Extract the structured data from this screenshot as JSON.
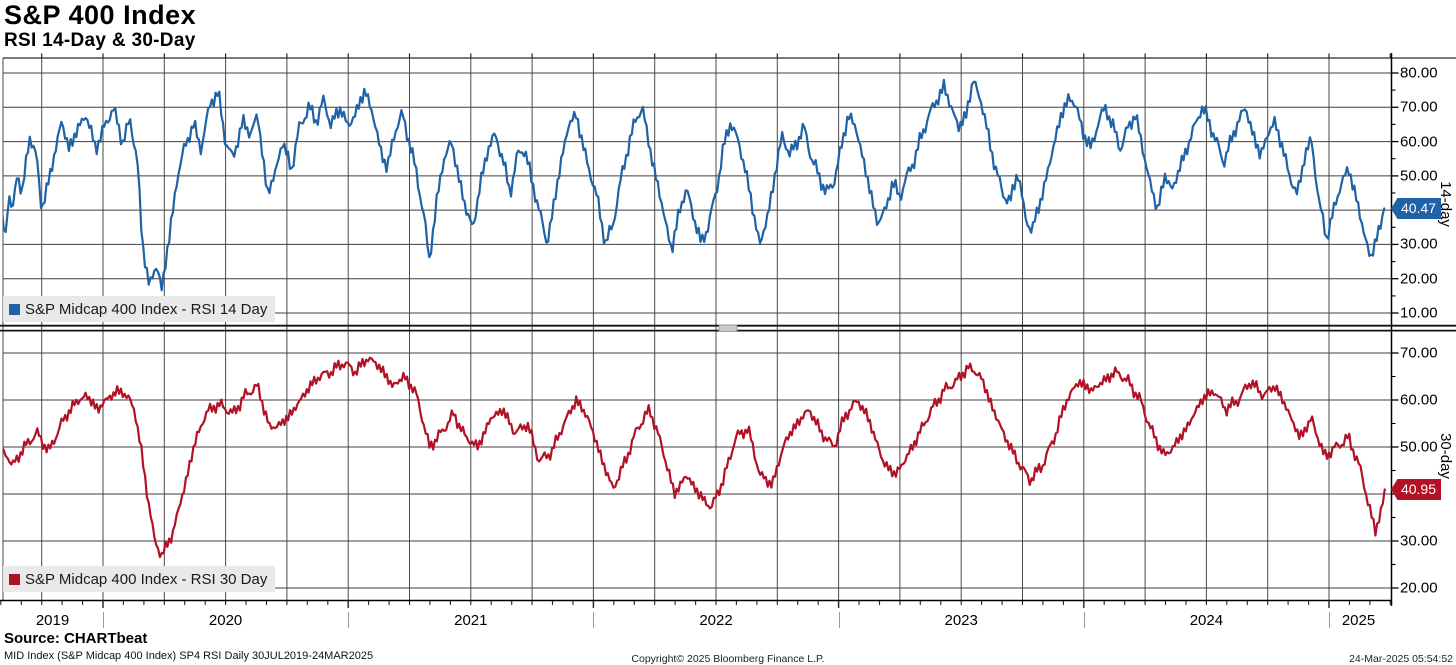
{
  "header": {
    "title": "S&P 400 Index",
    "subtitle": "RSI 14-Day & 30-Day"
  },
  "colors": {
    "rsi14_blue": "#1f62a5",
    "rsi30_red": "#b11226",
    "grid": "#4a4a4a",
    "axis": "#000000",
    "legend_bg": "#e9e9e9",
    "year_separator": "#9a9a9a",
    "badge_text": "#ffffff"
  },
  "xaxis": {
    "year_labels": [
      "2019",
      "2020",
      "2021",
      "2022",
      "2023",
      "2024",
      "2025"
    ],
    "range_label": "30JUL2019-24MAR2025"
  },
  "footer": {
    "source": "Source: CHARTbeat",
    "descriptor": "MID Index (S&P Midcap 400 Index) SP4 RSI  Daily 30JUL2019-24MAR2025",
    "copyright": "Copyright© 2025 Bloomberg Finance L.P.",
    "datetime": "24-Mar-2025 05:54:52"
  },
  "chart_data": [
    {
      "type": "line",
      "name": "S&P Midcap 400 Index - RSI 14 Day",
      "axis_title": "14-day",
      "panel": "top",
      "color": "#1f62a5",
      "legend_marker": "square-icon",
      "ylim": [
        6.5,
        84.4
      ],
      "ygrid": [
        10,
        20,
        30,
        40,
        50,
        60,
        70,
        80
      ],
      "ytick_labels": [
        "80.00",
        "70.00",
        "60.00",
        "50.00",
        "30.00",
        "20.00",
        "10.00"
      ],
      "last_value": 40.47,
      "last_label": "40.47",
      "x_unit": "decimal_year",
      "points": [
        [
          2019.588,
          40
        ],
        [
          2019.6,
          31
        ],
        [
          2019.615,
          45
        ],
        [
          2019.63,
          38
        ],
        [
          2019.65,
          52
        ],
        [
          2019.67,
          44
        ],
        [
          2019.7,
          62
        ],
        [
          2019.73,
          55
        ],
        [
          2019.75,
          40
        ],
        [
          2019.79,
          52
        ],
        [
          2019.83,
          66
        ],
        [
          2019.86,
          58
        ],
        [
          2019.9,
          64
        ],
        [
          2019.93,
          68
        ],
        [
          2019.97,
          58
        ],
        [
          2020.0,
          63
        ],
        [
          2020.04,
          70
        ],
        [
          2020.08,
          60
        ],
        [
          2020.11,
          66
        ],
        [
          2020.14,
          55
        ],
        [
          2020.16,
          30
        ],
        [
          2020.19,
          18
        ],
        [
          2020.22,
          24
        ],
        [
          2020.24,
          17
        ],
        [
          2020.27,
          32
        ],
        [
          2020.3,
          48
        ],
        [
          2020.33,
          58
        ],
        [
          2020.37,
          65
        ],
        [
          2020.4,
          58
        ],
        [
          2020.44,
          72
        ],
        [
          2020.47,
          74
        ],
        [
          2020.5,
          60
        ],
        [
          2020.53,
          55
        ],
        [
          2020.57,
          66
        ],
        [
          2020.6,
          62
        ],
        [
          2020.63,
          68
        ],
        [
          2020.67,
          45
        ],
        [
          2020.7,
          50
        ],
        [
          2020.73,
          60
        ],
        [
          2020.77,
          52
        ],
        [
          2020.8,
          64
        ],
        [
          2020.84,
          70
        ],
        [
          2020.87,
          66
        ],
        [
          2020.9,
          72
        ],
        [
          2020.93,
          65
        ],
        [
          2020.97,
          70
        ],
        [
          2021.0,
          64
        ],
        [
          2021.04,
          70
        ],
        [
          2021.07,
          75
        ],
        [
          2021.1,
          68
        ],
        [
          2021.13,
          58
        ],
        [
          2021.16,
          52
        ],
        [
          2021.19,
          63
        ],
        [
          2021.22,
          68
        ],
        [
          2021.25,
          60
        ],
        [
          2021.28,
          50
        ],
        [
          2021.31,
          38
        ],
        [
          2021.33,
          25
        ],
        [
          2021.36,
          42
        ],
        [
          2021.39,
          55
        ],
        [
          2021.42,
          60
        ],
        [
          2021.45,
          50
        ],
        [
          2021.48,
          40
        ],
        [
          2021.51,
          35
        ],
        [
          2021.54,
          48
        ],
        [
          2021.57,
          58
        ],
        [
          2021.6,
          62
        ],
        [
          2021.63,
          55
        ],
        [
          2021.66,
          45
        ],
        [
          2021.69,
          56
        ],
        [
          2021.72,
          58
        ],
        [
          2021.75,
          48
        ],
        [
          2021.78,
          40
        ],
        [
          2021.81,
          30
        ],
        [
          2021.84,
          42
        ],
        [
          2021.87,
          55
        ],
        [
          2021.9,
          65
        ],
        [
          2021.93,
          68
        ],
        [
          2021.96,
          58
        ],
        [
          2021.99,
          50
        ],
        [
          2022.02,
          42
        ],
        [
          2022.05,
          30
        ],
        [
          2022.08,
          36
        ],
        [
          2022.11,
          48
        ],
        [
          2022.14,
          58
        ],
        [
          2022.17,
          66
        ],
        [
          2022.2,
          70
        ],
        [
          2022.23,
          58
        ],
        [
          2022.26,
          48
        ],
        [
          2022.29,
          38
        ],
        [
          2022.32,
          28
        ],
        [
          2022.35,
          40
        ],
        [
          2022.38,
          46
        ],
        [
          2022.41,
          38
        ],
        [
          2022.44,
          30
        ],
        [
          2022.47,
          36
        ],
        [
          2022.5,
          45
        ],
        [
          2022.53,
          58
        ],
        [
          2022.56,
          66
        ],
        [
          2022.59,
          60
        ],
        [
          2022.62,
          52
        ],
        [
          2022.65,
          40
        ],
        [
          2022.68,
          30
        ],
        [
          2022.71,
          38
        ],
        [
          2022.74,
          50
        ],
        [
          2022.77,
          62
        ],
        [
          2022.8,
          56
        ],
        [
          2022.83,
          60
        ],
        [
          2022.86,
          64
        ],
        [
          2022.89,
          55
        ],
        [
          2022.92,
          50
        ],
        [
          2022.95,
          45
        ],
        [
          2022.98,
          48
        ],
        [
          2023.01,
          58
        ],
        [
          2023.04,
          68
        ],
        [
          2023.07,
          64
        ],
        [
          2023.1,
          55
        ],
        [
          2023.13,
          45
        ],
        [
          2023.16,
          36
        ],
        [
          2023.19,
          40
        ],
        [
          2023.22,
          48
        ],
        [
          2023.25,
          44
        ],
        [
          2023.28,
          50
        ],
        [
          2023.31,
          55
        ],
        [
          2023.34,
          62
        ],
        [
          2023.37,
          68
        ],
        [
          2023.4,
          72
        ],
        [
          2023.43,
          76
        ],
        [
          2023.46,
          70
        ],
        [
          2023.49,
          64
        ],
        [
          2023.52,
          68
        ],
        [
          2023.55,
          78
        ],
        [
          2023.58,
          72
        ],
        [
          2023.61,
          62
        ],
        [
          2023.64,
          52
        ],
        [
          2023.67,
          45
        ],
        [
          2023.7,
          42
        ],
        [
          2023.73,
          52
        ],
        [
          2023.76,
          38
        ],
        [
          2023.79,
          34
        ],
        [
          2023.82,
          42
        ],
        [
          2023.85,
          50
        ],
        [
          2023.88,
          60
        ],
        [
          2023.91,
          68
        ],
        [
          2023.94,
          73
        ],
        [
          2023.97,
          70
        ],
        [
          2024.0,
          62
        ],
        [
          2024.03,
          58
        ],
        [
          2024.06,
          66
        ],
        [
          2024.09,
          70
        ],
        [
          2024.12,
          64
        ],
        [
          2024.15,
          58
        ],
        [
          2024.18,
          64
        ],
        [
          2024.21,
          68
        ],
        [
          2024.24,
          58
        ],
        [
          2024.27,
          48
        ],
        [
          2024.3,
          40
        ],
        [
          2024.33,
          50
        ],
        [
          2024.36,
          46
        ],
        [
          2024.39,
          52
        ],
        [
          2024.42,
          58
        ],
        [
          2024.45,
          64
        ],
        [
          2024.48,
          70
        ],
        [
          2024.51,
          66
        ],
        [
          2024.54,
          60
        ],
        [
          2024.57,
          54
        ],
        [
          2024.6,
          60
        ],
        [
          2024.63,
          66
        ],
        [
          2024.66,
          70
        ],
        [
          2024.69,
          62
        ],
        [
          2024.72,
          56
        ],
        [
          2024.75,
          62
        ],
        [
          2024.78,
          66
        ],
        [
          2024.81,
          58
        ],
        [
          2024.84,
          50
        ],
        [
          2024.87,
          44
        ],
        [
          2024.9,
          56
        ],
        [
          2024.93,
          60
        ],
        [
          2024.96,
          42
        ],
        [
          2024.99,
          32
        ],
        [
          2025.02,
          40
        ],
        [
          2025.05,
          48
        ],
        [
          2025.08,
          52
        ],
        [
          2025.11,
          44
        ],
        [
          2025.14,
          34
        ],
        [
          2025.17,
          26
        ],
        [
          2025.2,
          33
        ],
        [
          2025.225,
          40.47
        ]
      ]
    },
    {
      "type": "line",
      "name": "S&P Midcap 400 Index - RSI 30 Day",
      "axis_title": "30-day",
      "panel": "bottom",
      "color": "#b11226",
      "legend_marker": "square-icon",
      "ylim": [
        17.7,
        74.5
      ],
      "ygrid": [
        20,
        30,
        40,
        50,
        60,
        70
      ],
      "ytick_labels": [
        "70.00",
        "60.00",
        "50.00",
        "30.00",
        "20.00"
      ],
      "last_value": 40.95,
      "last_label": "40.95",
      "x_unit": "decimal_year",
      "points": [
        [
          2019.588,
          50
        ],
        [
          2019.63,
          46
        ],
        [
          2019.68,
          50
        ],
        [
          2019.73,
          53
        ],
        [
          2019.78,
          49
        ],
        [
          2019.83,
          55
        ],
        [
          2019.88,
          59
        ],
        [
          2019.93,
          61
        ],
        [
          2019.98,
          58
        ],
        [
          2020.03,
          61
        ],
        [
          2020.08,
          62
        ],
        [
          2020.13,
          58
        ],
        [
          2020.17,
          44
        ],
        [
          2020.21,
          30
        ],
        [
          2020.24,
          27
        ],
        [
          2020.28,
          31
        ],
        [
          2020.33,
          41
        ],
        [
          2020.38,
          52
        ],
        [
          2020.43,
          58
        ],
        [
          2020.48,
          59
        ],
        [
          2020.53,
          57
        ],
        [
          2020.58,
          61
        ],
        [
          2020.63,
          63
        ],
        [
          2020.68,
          54
        ],
        [
          2020.73,
          55
        ],
        [
          2020.78,
          58
        ],
        [
          2020.83,
          62
        ],
        [
          2020.88,
          65
        ],
        [
          2020.93,
          66
        ],
        [
          2020.98,
          68
        ],
        [
          2021.03,
          66
        ],
        [
          2021.08,
          69
        ],
        [
          2021.13,
          67
        ],
        [
          2021.18,
          63
        ],
        [
          2021.23,
          65
        ],
        [
          2021.28,
          61
        ],
        [
          2021.33,
          50
        ],
        [
          2021.38,
          53
        ],
        [
          2021.43,
          57
        ],
        [
          2021.48,
          52
        ],
        [
          2021.53,
          50
        ],
        [
          2021.58,
          56
        ],
        [
          2021.63,
          58
        ],
        [
          2021.68,
          53
        ],
        [
          2021.73,
          55
        ],
        [
          2021.78,
          47
        ],
        [
          2021.83,
          49
        ],
        [
          2021.88,
          55
        ],
        [
          2021.93,
          60
        ],
        [
          2021.98,
          56
        ],
        [
          2022.03,
          48
        ],
        [
          2022.08,
          41
        ],
        [
          2022.13,
          47
        ],
        [
          2022.18,
          54
        ],
        [
          2022.23,
          58
        ],
        [
          2022.28,
          50
        ],
        [
          2022.33,
          40
        ],
        [
          2022.38,
          44
        ],
        [
          2022.43,
          40
        ],
        [
          2022.48,
          37
        ],
        [
          2022.53,
          43
        ],
        [
          2022.58,
          52
        ],
        [
          2022.63,
          54
        ],
        [
          2022.68,
          44
        ],
        [
          2022.73,
          42
        ],
        [
          2022.78,
          51
        ],
        [
          2022.83,
          55
        ],
        [
          2022.88,
          58
        ],
        [
          2022.93,
          53
        ],
        [
          2022.98,
          50
        ],
        [
          2023.03,
          57
        ],
        [
          2023.08,
          60
        ],
        [
          2023.13,
          55
        ],
        [
          2023.18,
          47
        ],
        [
          2023.23,
          44
        ],
        [
          2023.28,
          48
        ],
        [
          2023.33,
          53
        ],
        [
          2023.38,
          58
        ],
        [
          2023.43,
          62
        ],
        [
          2023.48,
          64
        ],
        [
          2023.53,
          67
        ],
        [
          2023.58,
          65
        ],
        [
          2023.63,
          58
        ],
        [
          2023.68,
          52
        ],
        [
          2023.73,
          47
        ],
        [
          2023.78,
          43
        ],
        [
          2023.83,
          46
        ],
        [
          2023.88,
          52
        ],
        [
          2023.93,
          60
        ],
        [
          2023.98,
          64
        ],
        [
          2024.03,
          62
        ],
        [
          2024.08,
          64
        ],
        [
          2024.13,
          66
        ],
        [
          2024.18,
          64
        ],
        [
          2024.23,
          60
        ],
        [
          2024.28,
          53
        ],
        [
          2024.33,
          48
        ],
        [
          2024.38,
          51
        ],
        [
          2024.43,
          55
        ],
        [
          2024.48,
          60
        ],
        [
          2024.53,
          62
        ],
        [
          2024.58,
          58
        ],
        [
          2024.63,
          60
        ],
        [
          2024.68,
          64
        ],
        [
          2024.73,
          61
        ],
        [
          2024.78,
          63
        ],
        [
          2024.83,
          58
        ],
        [
          2024.88,
          52
        ],
        [
          2024.93,
          56
        ],
        [
          2024.98,
          48
        ],
        [
          2025.03,
          50
        ],
        [
          2025.08,
          52
        ],
        [
          2025.13,
          45
        ],
        [
          2025.16,
          38
        ],
        [
          2025.19,
          32
        ],
        [
          2025.22,
          38
        ],
        [
          2025.227,
          40.95
        ]
      ]
    }
  ]
}
